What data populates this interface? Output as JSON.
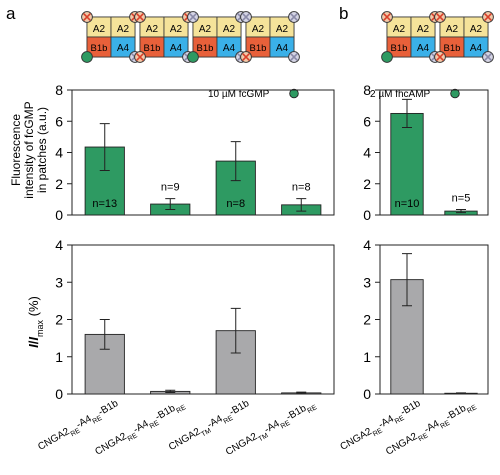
{
  "panel_labels": [
    "a",
    "b"
  ],
  "schematic_labels": {
    "a2": "A2",
    "b1b": "B1b",
    "a4": "A4"
  },
  "colors": {
    "green_bar": "#2e9a62",
    "gray_bar": "#a9a9ab",
    "a2_fill": "#f5e39a",
    "a4_fill": "#3ab0e8",
    "b1b_fill": "#e8603a",
    "marker_cross": "#d8402a",
    "marker_dot": "#2e9a62",
    "marker_gray": "#8a8aa8"
  },
  "x_labels": {
    "a": [
      {
        "main": "CNGA2",
        "sub1": "RE",
        "mid": "-A4",
        "sub2": "RE",
        "tail": "-B1b"
      },
      {
        "main": "CNGA2",
        "sub1": "RE",
        "mid": "-A4",
        "sub2": "RE",
        "tail": "-B1b",
        "sub3": "RE"
      },
      {
        "main": "CNGA2",
        "sub1": "TM",
        "mid": "-A4",
        "sub2": "RE",
        "tail": "-B1b"
      },
      {
        "main": "CNGA2",
        "sub1": "TM",
        "mid": "-A4",
        "sub2": "RE",
        "tail": "-B1b",
        "sub3": "RE"
      }
    ],
    "b": [
      {
        "main": "CNGA2",
        "sub1": "RE",
        "mid": "-A4",
        "sub2": "RE",
        "tail": "-B1b"
      },
      {
        "main": "CNGA2",
        "sub1": "RE",
        "mid": "-A4",
        "sub2": "RE",
        "tail": "-B1b",
        "sub3": "RE"
      }
    ]
  },
  "chart_data": [
    {
      "panel": "a-top",
      "type": "bar",
      "categories": [
        "CNGA2RE-A4RE-B1b",
        "CNGA2RE-A4RE-B1bRE",
        "CNGA2TM-A4RE-B1b",
        "CNGA2TM-A4RE-B1bRE"
      ],
      "values": [
        4.35,
        0.7,
        3.45,
        0.65
      ],
      "errors": [
        1.5,
        0.35,
        1.25,
        0.4
      ],
      "n_labels": [
        "n=13",
        "n=9",
        "n=8",
        "n=8"
      ],
      "annotation": "10 µM fcGMP",
      "ylabel_lines": [
        "Fluorescence",
        "intensity of fcGMP",
        "in patches (a.u.)"
      ],
      "ylim": [
        0,
        8
      ],
      "yticks": [
        0,
        2,
        4,
        6,
        8
      ],
      "color": "#2e9a62"
    },
    {
      "panel": "a-bottom",
      "type": "bar",
      "categories": [
        "CNGA2RE-A4RE-B1b",
        "CNGA2RE-A4RE-B1bRE",
        "CNGA2TM-A4RE-B1b",
        "CNGA2TM-A4RE-B1bRE"
      ],
      "values": [
        1.6,
        0.07,
        1.7,
        0.03
      ],
      "errors": [
        0.4,
        0.03,
        0.6,
        0.02
      ],
      "ylabel": "I/Imax (%)",
      "ylim": [
        0,
        4
      ],
      "yticks": [
        0,
        1,
        2,
        3,
        4
      ],
      "color": "#a9a9ab"
    },
    {
      "panel": "b-top",
      "type": "bar",
      "categories": [
        "CNGA2RE-A4RE-B1b",
        "CNGA2RE-A4RE-B1bRE"
      ],
      "values": [
        6.5,
        0.25
      ],
      "errors": [
        0.9,
        0.1
      ],
      "n_labels": [
        "n=10",
        "n=5"
      ],
      "annotation": "2 µM fhcAMP",
      "ylim": [
        0,
        8
      ],
      "yticks": [
        0,
        2,
        4,
        6,
        8
      ],
      "color": "#2e9a62"
    },
    {
      "panel": "b-bottom",
      "type": "bar",
      "categories": [
        "CNGA2RE-A4RE-B1b",
        "CNGA2RE-A4RE-B1bRE"
      ],
      "values": [
        3.07,
        0.02
      ],
      "errors": [
        0.7,
        0.01
      ],
      "ylim": [
        0,
        4
      ],
      "yticks": [
        0,
        1,
        2,
        3,
        4
      ],
      "color": "#a9a9ab"
    }
  ]
}
